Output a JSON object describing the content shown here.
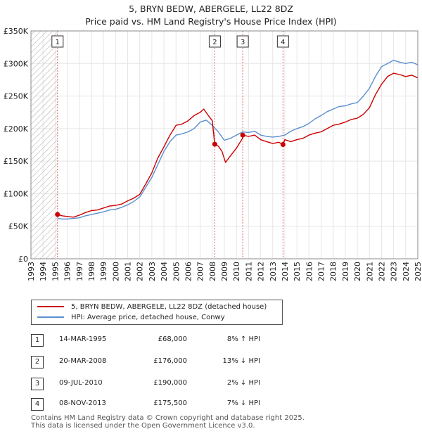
{
  "title_line1": "5, BRYN BEDW, ABERGELE, LL22 8DZ",
  "title_line2": "Price paid vs. HM Land Registry's House Price Index (HPI)",
  "colors": {
    "property": "#cc0000",
    "hpi": "#5b8fd0",
    "marker_line": "#dd6666",
    "hatch": "#aaaaaa"
  },
  "chart_data": {
    "type": "line",
    "xlim": [
      1993,
      2025
    ],
    "ylim": [
      0,
      350000
    ],
    "y_tick_values": [
      0,
      50000,
      100000,
      150000,
      200000,
      250000,
      300000,
      350000
    ],
    "y_tick_labels": [
      "£0",
      "£50K",
      "£100K",
      "£150K",
      "£200K",
      "£250K",
      "£300K",
      "£350K"
    ],
    "x_tick_labels": [
      "1993",
      "1994",
      "1995",
      "1996",
      "1997",
      "1998",
      "1999",
      "2000",
      "2001",
      "2002",
      "2003",
      "2004",
      "2005",
      "2006",
      "2007",
      "2008",
      "2009",
      "2010",
      "2011",
      "2012",
      "2013",
      "2014",
      "2015",
      "2016",
      "2017",
      "2018",
      "2019",
      "2020",
      "2021",
      "2022",
      "2023",
      "2024",
      "2025"
    ],
    "hatched_region": [
      1993,
      1995.2
    ],
    "series": [
      {
        "name": "5, BRYN BEDW, ABERGELE, LL22 8DZ (detached house)",
        "points": [
          [
            1995.2,
            68000
          ],
          [
            1995.6,
            66000
          ],
          [
            1996.0,
            65000
          ],
          [
            1996.5,
            64000
          ],
          [
            1997.0,
            67000
          ],
          [
            1997.5,
            71000
          ],
          [
            1998.0,
            74000
          ],
          [
            1998.5,
            75000
          ],
          [
            1999.0,
            78000
          ],
          [
            1999.5,
            81000
          ],
          [
            2000.0,
            82000
          ],
          [
            2000.5,
            84000
          ],
          [
            2001.0,
            89000
          ],
          [
            2001.5,
            93000
          ],
          [
            2002.0,
            99000
          ],
          [
            2002.5,
            115000
          ],
          [
            2003.0,
            132000
          ],
          [
            2003.5,
            155000
          ],
          [
            2004.0,
            172000
          ],
          [
            2004.5,
            190000
          ],
          [
            2005.0,
            205000
          ],
          [
            2005.5,
            207000
          ],
          [
            2006.0,
            212000
          ],
          [
            2006.5,
            220000
          ],
          [
            2007.0,
            225000
          ],
          [
            2007.3,
            230000
          ],
          [
            2007.6,
            222000
          ],
          [
            2008.0,
            212000
          ],
          [
            2008.2,
            176000
          ],
          [
            2008.5,
            173000
          ],
          [
            2008.8,
            165000
          ],
          [
            2009.1,
            148000
          ],
          [
            2009.5,
            158000
          ],
          [
            2010.0,
            170000
          ],
          [
            2010.5,
            185000
          ],
          [
            2010.52,
            190000
          ],
          [
            2011.0,
            188000
          ],
          [
            2011.5,
            190000
          ],
          [
            2012.0,
            183000
          ],
          [
            2012.5,
            180000
          ],
          [
            2013.0,
            177000
          ],
          [
            2013.5,
            179000
          ],
          [
            2013.85,
            175500
          ],
          [
            2014.0,
            183000
          ],
          [
            2014.5,
            180000
          ],
          [
            2015.0,
            183000
          ],
          [
            2015.5,
            185000
          ],
          [
            2016.0,
            190000
          ],
          [
            2016.5,
            193000
          ],
          [
            2017.0,
            195000
          ],
          [
            2017.5,
            200000
          ],
          [
            2018.0,
            205000
          ],
          [
            2018.5,
            207000
          ],
          [
            2019.0,
            210000
          ],
          [
            2019.5,
            214000
          ],
          [
            2020.0,
            216000
          ],
          [
            2020.5,
            222000
          ],
          [
            2021.0,
            232000
          ],
          [
            2021.5,
            252000
          ],
          [
            2022.0,
            268000
          ],
          [
            2022.5,
            280000
          ],
          [
            2023.0,
            285000
          ],
          [
            2023.5,
            283000
          ],
          [
            2024.0,
            280000
          ],
          [
            2024.5,
            282000
          ],
          [
            2025.0,
            278000
          ]
        ]
      },
      {
        "name": "HPI: Average price, detached house, Conwy",
        "points": [
          [
            1995.2,
            62000
          ],
          [
            1995.6,
            61000
          ],
          [
            1996.0,
            61000
          ],
          [
            1996.5,
            62000
          ],
          [
            1997.0,
            63000
          ],
          [
            1997.5,
            66000
          ],
          [
            1998.0,
            68000
          ],
          [
            1998.5,
            70000
          ],
          [
            1999.0,
            72000
          ],
          [
            1999.5,
            75000
          ],
          [
            2000.0,
            76000
          ],
          [
            2000.5,
            79000
          ],
          [
            2001.0,
            83000
          ],
          [
            2001.5,
            88000
          ],
          [
            2002.0,
            95000
          ],
          [
            2002.5,
            110000
          ],
          [
            2003.0,
            125000
          ],
          [
            2003.5,
            145000
          ],
          [
            2004.0,
            165000
          ],
          [
            2004.5,
            180000
          ],
          [
            2005.0,
            190000
          ],
          [
            2005.5,
            192000
          ],
          [
            2006.0,
            195000
          ],
          [
            2006.5,
            200000
          ],
          [
            2007.0,
            210000
          ],
          [
            2007.5,
            213000
          ],
          [
            2008.0,
            205000
          ],
          [
            2008.5,
            195000
          ],
          [
            2009.0,
            182000
          ],
          [
            2009.5,
            185000
          ],
          [
            2010.0,
            190000
          ],
          [
            2010.5,
            195000
          ],
          [
            2011.0,
            194000
          ],
          [
            2011.5,
            196000
          ],
          [
            2012.0,
            190000
          ],
          [
            2012.5,
            188000
          ],
          [
            2013.0,
            187000
          ],
          [
            2013.5,
            188000
          ],
          [
            2014.0,
            190000
          ],
          [
            2014.5,
            196000
          ],
          [
            2015.0,
            200000
          ],
          [
            2015.5,
            203000
          ],
          [
            2016.0,
            208000
          ],
          [
            2016.5,
            215000
          ],
          [
            2017.0,
            220000
          ],
          [
            2017.5,
            226000
          ],
          [
            2018.0,
            230000
          ],
          [
            2018.5,
            234000
          ],
          [
            2019.0,
            235000
          ],
          [
            2019.5,
            238000
          ],
          [
            2020.0,
            240000
          ],
          [
            2020.5,
            250000
          ],
          [
            2021.0,
            262000
          ],
          [
            2021.5,
            280000
          ],
          [
            2022.0,
            295000
          ],
          [
            2022.5,
            300000
          ],
          [
            2023.0,
            305000
          ],
          [
            2023.5,
            302000
          ],
          [
            2024.0,
            300000
          ],
          [
            2024.5,
            302000
          ],
          [
            2025.0,
            298000
          ]
        ]
      }
    ],
    "transactions": [
      {
        "id": "1",
        "x": 1995.2,
        "y": 68000
      },
      {
        "id": "2",
        "x": 2008.21,
        "y": 176000
      },
      {
        "id": "3",
        "x": 2010.52,
        "y": 190000
      },
      {
        "id": "4",
        "x": 2013.85,
        "y": 175500
      }
    ]
  },
  "legend": {
    "property": "5, BRYN BEDW, ABERGELE, LL22 8DZ (detached house)",
    "hpi": "HPI: Average price, detached house, Conwy"
  },
  "transactions_table": [
    {
      "id": "1",
      "date": "14-MAR-1995",
      "price": "£68,000",
      "hpi": "8% ↑ HPI"
    },
    {
      "id": "2",
      "date": "20-MAR-2008",
      "price": "£176,000",
      "hpi": "13% ↓ HPI"
    },
    {
      "id": "3",
      "date": "09-JUL-2010",
      "price": "£190,000",
      "hpi": "2% ↓ HPI"
    },
    {
      "id": "4",
      "date": "08-NOV-2013",
      "price": "£175,500",
      "hpi": "7% ↓ HPI"
    }
  ],
  "footer_line1": "Contains HM Land Registry data © Crown copyright and database right 2025.",
  "footer_line2": "This data is licensed under the Open Government Licence v3.0."
}
